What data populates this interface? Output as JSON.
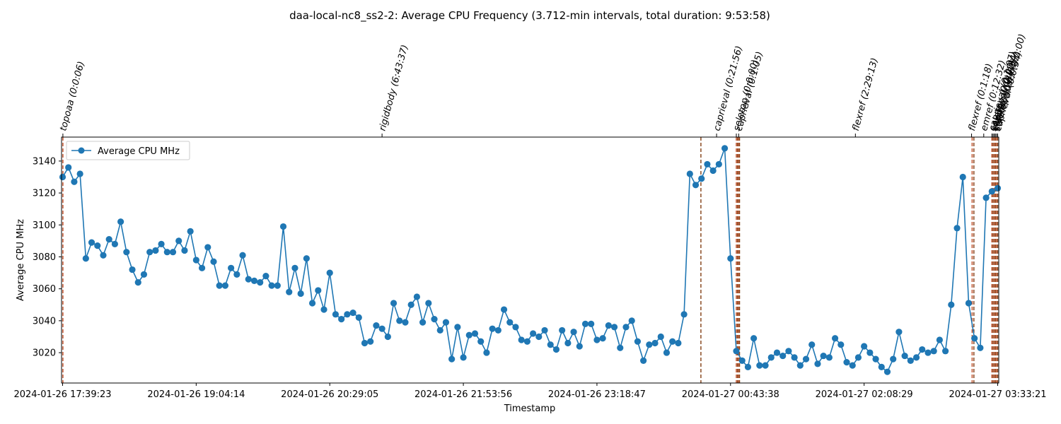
{
  "chart_data": {
    "type": "line",
    "title": "daa-local-nc8_ss2-2: Average CPU Frequency (3.712-min intervals, total duration: 9:53:58)",
    "xlabel": "Timestamp",
    "ylabel": "Average CPU MHz",
    "legend": {
      "placement": "top-left",
      "entries": [
        "Average CPU MHz"
      ]
    },
    "grid": false,
    "line_color": "#1f77b4",
    "marker_color": "#1f77b4",
    "marker_line_color": "#c0522d",
    "annotation_line_color": "#8a4a22",
    "x_ticks": [
      "2024-01-26 17:39:23",
      "2024-01-26 19:04:14",
      "2024-01-26 20:29:05",
      "2024-01-26 21:53:56",
      "2024-01-26 23:18:47",
      "2024-01-27 00:43:38",
      "2024-01-27 02:08:29",
      "2024-01-27 03:33:21"
    ],
    "y_ticks": [
      3020,
      3040,
      3060,
      3080,
      3100,
      3120,
      3140
    ],
    "ylim": [
      3001,
      3155
    ],
    "series": [
      {
        "name": "Average CPU MHz",
        "values": [
          3130,
          3136,
          3127,
          3132,
          3079,
          3089,
          3087,
          3081,
          3091,
          3088,
          3102,
          3083,
          3072,
          3064,
          3069,
          3083,
          3084,
          3088,
          3083,
          3083,
          3090,
          3084,
          3096,
          3078,
          3073,
          3086,
          3077,
          3062,
          3062,
          3073,
          3069,
          3081,
          3066,
          3065,
          3064,
          3068,
          3062,
          3062,
          3099,
          3058,
          3073,
          3057,
          3079,
          3051,
          3059,
          3047,
          3070,
          3044,
          3041,
          3044,
          3045,
          3042,
          3026,
          3027,
          3037,
          3035,
          3030,
          3051,
          3040,
          3039,
          3050,
          3055,
          3039,
          3051,
          3041,
          3034,
          3039,
          3016,
          3036,
          3017,
          3031,
          3032,
          3027,
          3020,
          3035,
          3034,
          3047,
          3039,
          3036,
          3028,
          3027,
          3032,
          3030,
          3034,
          3025,
          3022,
          3034,
          3026,
          3033,
          3024,
          3038,
          3038,
          3028,
          3029,
          3037,
          3036,
          3023,
          3036,
          3040,
          3027,
          3015,
          3025,
          3026,
          3030,
          3020,
          3027,
          3026,
          3044,
          3132,
          3125,
          3129,
          3138,
          3134,
          3138,
          3148,
          3079,
          3021,
          3015,
          3011,
          3029,
          3012,
          3012,
          3017,
          3020,
          3018,
          3021,
          3017,
          3012,
          3016,
          3025,
          3013,
          3018,
          3017,
          3029,
          3025,
          3014,
          3012,
          3017,
          3024,
          3020,
          3016,
          3011,
          3008,
          3016,
          3033,
          3018,
          3015,
          3017,
          3022,
          3020,
          3021,
          3028,
          3021,
          3050,
          3098,
          3130,
          3051,
          3029,
          3023,
          3117,
          3121,
          3123
        ]
      }
    ],
    "marker_lines_idx": [
      0.05,
      109.9,
      116.0,
      116.2,
      116.4,
      116.55,
      156.6,
      156.9,
      160.0,
      160.2,
      160.4,
      160.6,
      160.8,
      161.0
    ],
    "annotations": [
      {
        "label": "topoaa (0:0:06)",
        "idx": 0.05
      },
      {
        "label": "rigidbody (6:43:37)",
        "idx": 55.0
      },
      {
        "label": "caprieval (0:21:56)",
        "idx": 112.6
      },
      {
        "label": "seletop (0:0:00)",
        "idx": 116.0
      },
      {
        "label": "caprieval (0:1:05)",
        "idx": 116.4
      },
      {
        "label": "flexref (2:29:13)",
        "idx": 136.5
      },
      {
        "label": "flexref (0:1:18)",
        "idx": 156.5
      },
      {
        "label": "emref (0:12:32)",
        "idx": 158.6
      },
      {
        "label": "caprieval (0:1:07)",
        "idx": 160.0
      },
      {
        "label": "seletop (0:0:00)",
        "idx": 160.2
      },
      {
        "label": "caprieval (0:0:34)",
        "idx": 160.4
      },
      {
        "label": "clustfcc (0:0:01)",
        "idx": 160.6
      },
      {
        "label": "seletopclusts (0:0:00)",
        "idx": 160.8
      },
      {
        "label": "caprieval (0:0:34)",
        "idx": 161.0
      }
    ]
  }
}
